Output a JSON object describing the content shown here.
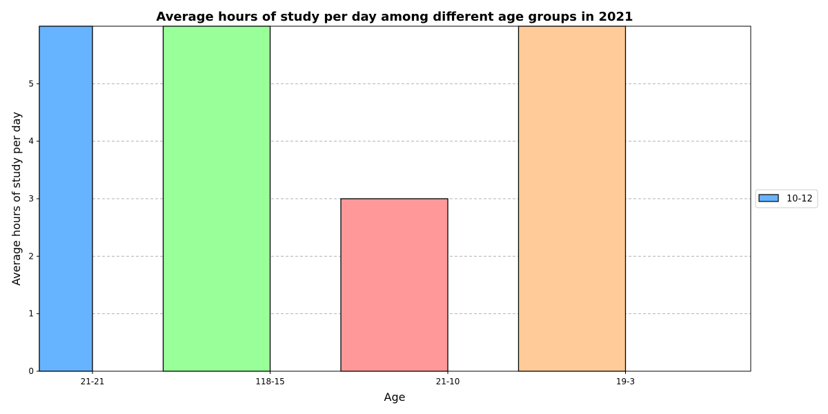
{
  "chart_data": {
    "type": "bar",
    "title": "Average hours of study per day among different age groups in 2021",
    "xlabel": "Age",
    "ylabel": "Average hours of study per day",
    "categories": [
      "21-21",
      "118-15",
      "21-10",
      "19-3"
    ],
    "values": [
      6,
      6,
      3,
      6
    ],
    "colors": [
      "#66b3ff",
      "#99ff99",
      "#ff9999",
      "#ffcc99"
    ],
    "yticks": [
      "0",
      "1",
      "2",
      "3",
      "4",
      "5"
    ],
    "ylim": [
      0,
      6
    ],
    "grid": "y, dashed",
    "legend": {
      "position": "center-right",
      "entries": [
        {
          "label": "10-12",
          "color": "#66b3ff"
        }
      ]
    }
  }
}
